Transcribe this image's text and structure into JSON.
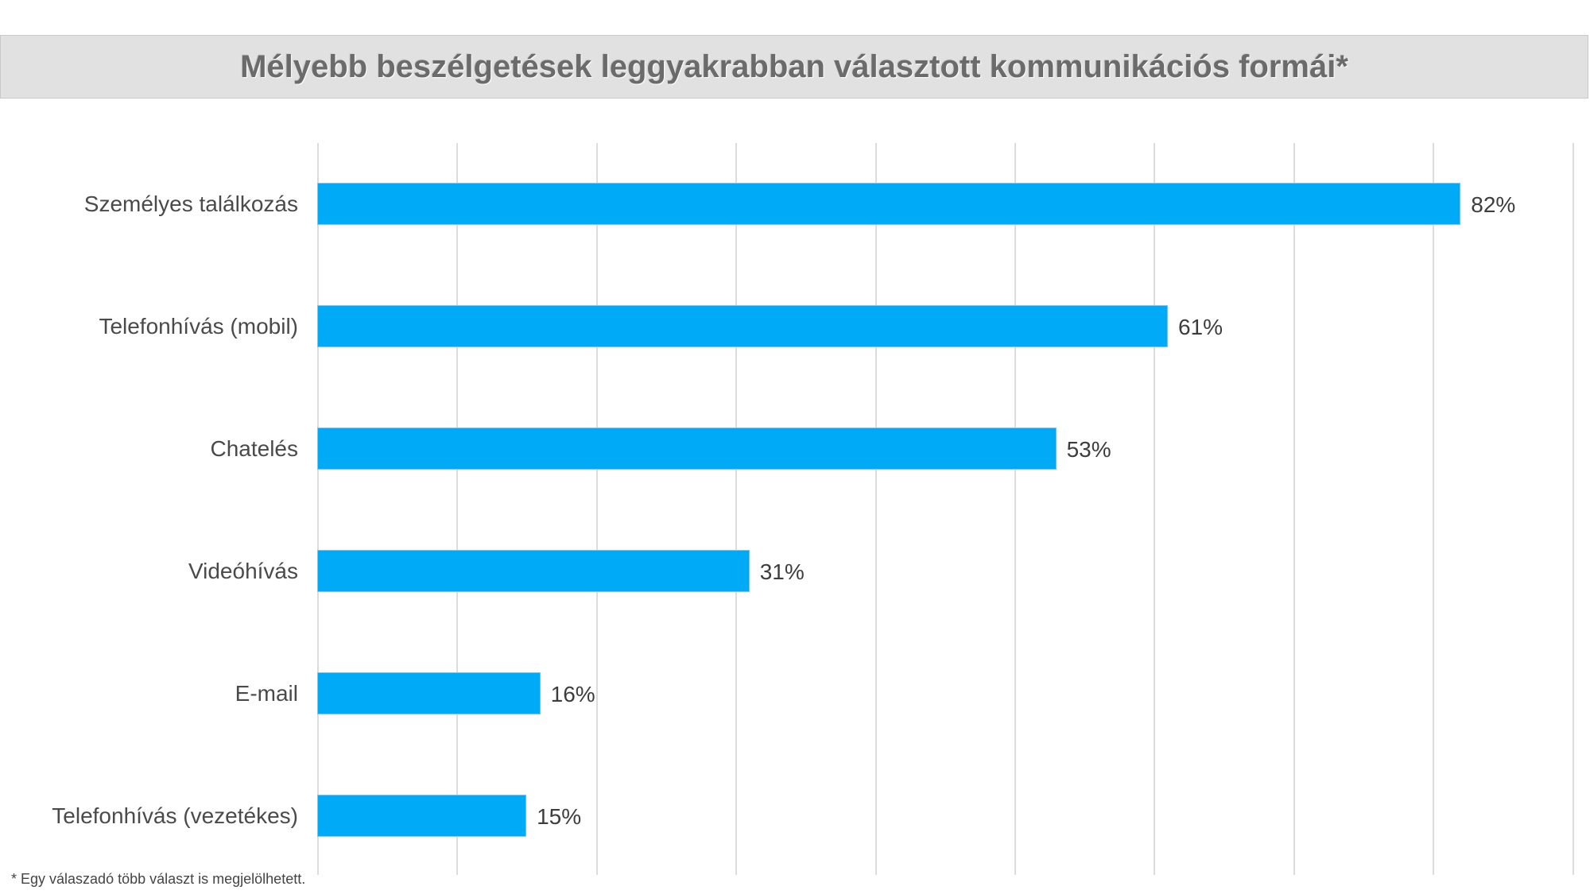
{
  "title": "Mélyebb beszélgetések leggyakrabban választott kommunikációs formái*",
  "footnote": "* Egy válaszadó több választ is megjelölhetett.",
  "colors": {
    "bar": "#00aaf7",
    "title_bg": "#e1e1e1",
    "title_text": "#6b6b6b",
    "grid": "#dcdcdc"
  },
  "chart_data": {
    "type": "bar",
    "orientation": "horizontal",
    "title": "Mélyebb beszélgetések leggyakrabban választott kommunikációs formái*",
    "categories": [
      "Személyes találkozás",
      "Telefonhívás (mobil)",
      "Chatelés",
      "Videóhívás",
      "E-mail",
      "Telefonhívás (vezetékes)"
    ],
    "values": [
      82,
      61,
      53,
      31,
      16,
      15
    ],
    "value_labels": [
      "82%",
      "61%",
      "53%",
      "31%",
      "16%",
      "15%"
    ],
    "xlabel": "",
    "ylabel": "",
    "xlim": [
      0,
      90
    ],
    "grid": true,
    "grid_step": 10,
    "tick_labels_visible": false,
    "legend": null,
    "annotations": [
      "* Egy válaszadó több választ is megjelölhetett."
    ]
  }
}
